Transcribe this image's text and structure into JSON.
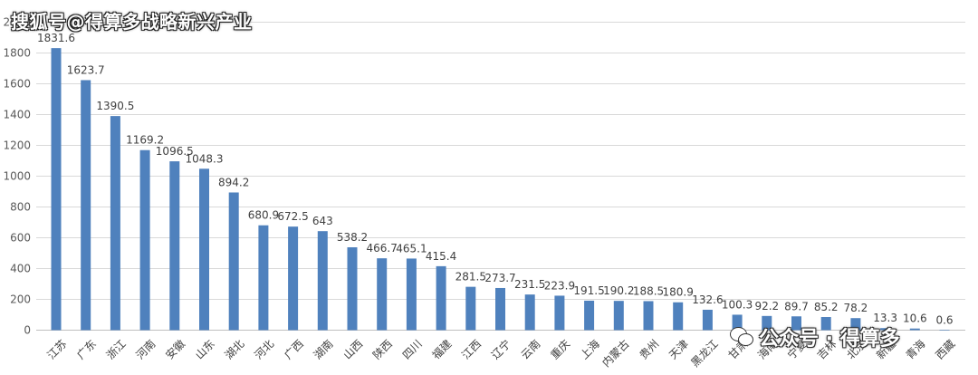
{
  "watermarks": {
    "top": "搜狐号@得算多战略新兴产业",
    "bottom": "公众号 · 得算多",
    "bottom_icon": "wechat-icon"
  },
  "chart_data": {
    "type": "bar",
    "title": "",
    "xlabel": "",
    "ylabel": "",
    "ylim": [
      0,
      2000
    ],
    "yticks": [
      0,
      200,
      400,
      600,
      800,
      1000,
      1200,
      1400,
      1600,
      1800,
      2000
    ],
    "grid": true,
    "bar_color": "#4f81bd",
    "categories": [
      "江苏",
      "广东",
      "浙江",
      "河南",
      "安徽",
      "山东",
      "湖北",
      "河北",
      "广西",
      "湖南",
      "山西",
      "陕西",
      "四川",
      "福建",
      "江西",
      "辽宁",
      "云南",
      "重庆",
      "上海",
      "内蒙古",
      "贵州",
      "天津",
      "黑龙江",
      "甘肃",
      "海南",
      "宁夏",
      "吉林",
      "北京",
      "新疆",
      "青海",
      "西藏"
    ],
    "values": [
      1831.6,
      1623.7,
      1390.5,
      1169.2,
      1096.5,
      1048.3,
      894.2,
      680.9,
      672.5,
      643,
      538.2,
      466.7,
      465.1,
      415.4,
      281.5,
      273.7,
      231.5,
      223.9,
      191.5,
      190.2,
      188.5,
      180.9,
      132.6,
      100.3,
      92.2,
      89.7,
      85.2,
      78.2,
      13.3,
      10.6,
      0.6
    ],
    "value_labels": [
      "1831.6",
      "1623.7",
      "1390.5",
      "1169.2",
      "1096.5",
      "1048.3",
      "894.2",
      "680.9",
      "672.5",
      "643",
      "538.2",
      "466.7",
      "465.1",
      "415.4",
      "281.5",
      "273.7",
      "231.5",
      "223.9",
      "191.5",
      "190.2",
      "188.5",
      "180.9",
      "132.6",
      "100.3",
      "92.2",
      "89.7",
      "85.2",
      "78.2",
      "13.3",
      "10.6",
      "0.6"
    ]
  }
}
